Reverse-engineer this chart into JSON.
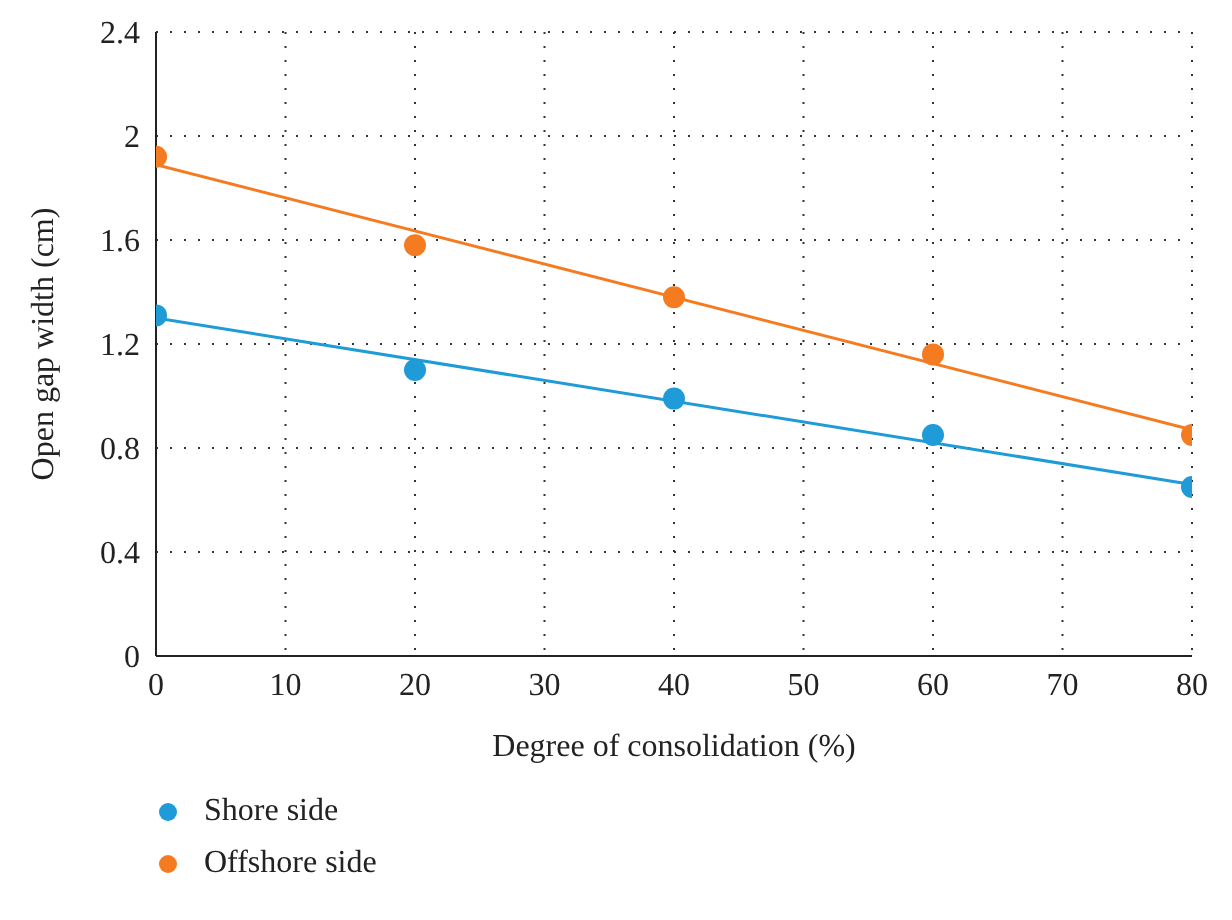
{
  "chart_data": {
    "type": "scatter",
    "xlabel": "Degree of consolidation (%)",
    "ylabel": "Open gap width (cm)",
    "xlim": [
      0,
      80
    ],
    "xticks": [
      0,
      10,
      20,
      30,
      40,
      50,
      60,
      70,
      80
    ],
    "ylim": [
      0,
      2.4
    ],
    "yticks": [
      0,
      0.4,
      0.8,
      1.2,
      1.6,
      2,
      2.4
    ],
    "grid": true,
    "legend": "bottom left",
    "marker": "circle",
    "series": [
      {
        "name": "Shore side",
        "color": "#1f9bd7",
        "x": [
          0,
          20,
          40,
          60,
          80
        ],
        "values": [
          1.31,
          1.1,
          0.99,
          0.85,
          0.65
        ]
      },
      {
        "name": "Offshore side",
        "color": "#f47b20",
        "x": [
          0,
          20,
          40,
          60,
          80
        ],
        "values": [
          1.92,
          1.58,
          1.38,
          1.16,
          0.85
        ]
      },
      {
        "type": "line",
        "color": "#1f9bd7",
        "x": [
          0,
          80
        ],
        "values": [
          1.3,
          0.66
        ],
        "marker": "none",
        "line_style": "solid"
      },
      {
        "type": "line",
        "color": "#f47b20",
        "x": [
          0,
          80
        ],
        "values": [
          1.89,
          0.87
        ],
        "marker": "none",
        "line_style": "solid"
      }
    ]
  }
}
